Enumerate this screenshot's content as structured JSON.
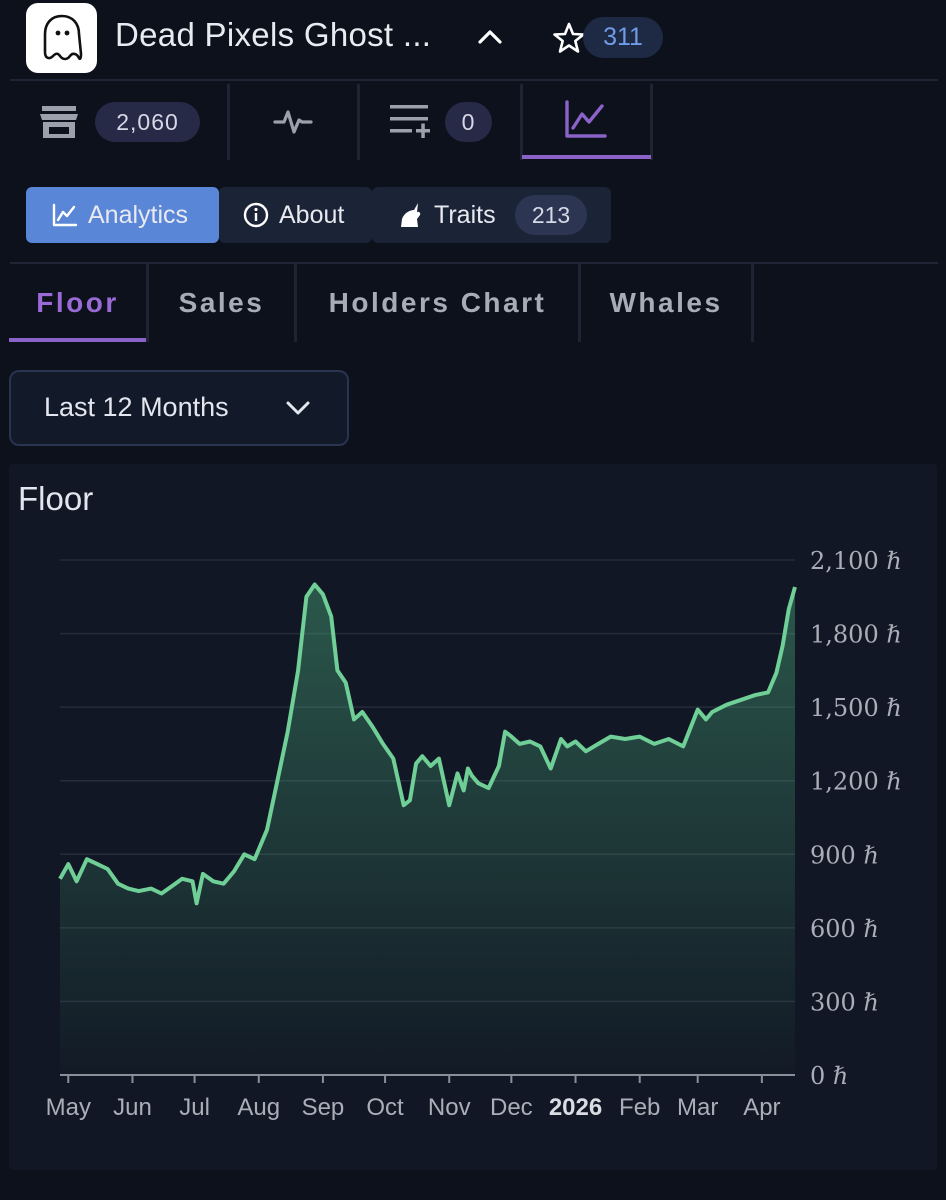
{
  "header": {
    "title": "Dead Pixels Ghost ...",
    "star_count": "311",
    "icons": {
      "logo": "ghost-icon",
      "collapse": "chevron-up-icon",
      "star": "star-icon"
    }
  },
  "icon_tabs": [
    {
      "icon": "storefront-icon",
      "count": "2,060"
    },
    {
      "icon": "activity-icon"
    },
    {
      "icon": "playlist-add-icon",
      "count": "0"
    },
    {
      "icon": "chart-line-icon",
      "active": true
    }
  ],
  "sections": {
    "analytics_label": "Analytics",
    "about_label": "About",
    "traits_label": "Traits",
    "traits_count": "213",
    "active": "Analytics"
  },
  "subtabs": {
    "floor": "Floor",
    "sales": "Sales",
    "holders": "Holders Chart",
    "whales": "Whales",
    "active": "Floor"
  },
  "range": {
    "selected": "Last 12 Months"
  },
  "colors": {
    "accent_purple": "#8a62c8",
    "accent_blue": "#5a86d8",
    "line_green": "#6fcf97",
    "background": "#0c111c"
  },
  "chart_data": {
    "type": "area",
    "title": "Floor",
    "unit": "ℏ",
    "y_axis_position": "right",
    "ylim": [
      0,
      2100
    ],
    "y_ticks": [
      "2,100 ℏ",
      "1,800 ℏ",
      "1,500 ℏ",
      "1,200 ℏ",
      "900 ℏ",
      "600 ℏ",
      "300 ℏ",
      "0 ℏ"
    ],
    "y_tick_values": [
      2100,
      1800,
      1500,
      1200,
      900,
      600,
      300,
      0
    ],
    "x_ticks": [
      "May",
      "Jun",
      "Jul",
      "Aug",
      "Sep",
      "Oct",
      "Nov",
      "Dec",
      "2026",
      "Feb",
      "Mar",
      "Apr"
    ],
    "x_ticks_bold": [
      "2026"
    ],
    "grid": true,
    "series": [
      {
        "x": [
          "2025-04-27",
          "2025-05-01",
          "2025-05-05",
          "2025-05-10",
          "2025-05-15",
          "2025-05-20",
          "2025-05-25",
          "2025-05-30",
          "2025-06-04",
          "2025-06-10",
          "2025-06-15",
          "2025-06-20",
          "2025-06-25",
          "2025-06-30",
          "2025-07-02",
          "2025-07-05",
          "2025-07-10",
          "2025-07-15",
          "2025-07-20",
          "2025-07-25",
          "2025-07-30",
          "2025-08-05",
          "2025-08-10",
          "2025-08-15",
          "2025-08-20",
          "2025-08-24",
          "2025-08-28",
          "2025-09-01",
          "2025-09-05",
          "2025-09-08",
          "2025-09-12",
          "2025-09-16",
          "2025-09-20",
          "2025-09-25",
          "2025-09-30",
          "2025-10-05",
          "2025-10-10",
          "2025-10-13",
          "2025-10-16",
          "2025-10-19",
          "2025-10-23",
          "2025-10-27",
          "2025-11-01",
          "2025-11-05",
          "2025-11-08",
          "2025-11-10",
          "2025-11-12",
          "2025-11-15",
          "2025-11-20",
          "2025-11-25",
          "2025-11-28",
          "2025-12-01",
          "2025-12-05",
          "2025-12-10",
          "2025-12-15",
          "2025-12-20",
          "2025-12-25",
          "2025-12-28",
          "2026-01-01",
          "2026-01-06",
          "2026-01-12",
          "2026-01-18",
          "2026-01-25",
          "2026-02-01",
          "2026-02-08",
          "2026-02-15",
          "2026-02-22",
          "2026-03-01",
          "2026-03-05",
          "2026-03-08",
          "2026-03-15",
          "2026-03-22",
          "2026-03-29",
          "2026-04-04",
          "2026-04-08",
          "2026-04-11",
          "2026-04-14",
          "2026-04-17"
        ],
        "values": [
          800,
          860,
          790,
          880,
          860,
          840,
          780,
          760,
          750,
          760,
          740,
          770,
          800,
          790,
          700,
          820,
          790,
          780,
          830,
          900,
          880,
          1000,
          1200,
          1400,
          1650,
          1950,
          2000,
          1960,
          1870,
          1650,
          1600,
          1450,
          1480,
          1420,
          1350,
          1290,
          1100,
          1120,
          1270,
          1300,
          1260,
          1290,
          1100,
          1230,
          1160,
          1250,
          1220,
          1190,
          1170,
          1260,
          1400,
          1380,
          1350,
          1360,
          1340,
          1250,
          1370,
          1340,
          1360,
          1320,
          1350,
          1380,
          1370,
          1380,
          1350,
          1370,
          1340,
          1490,
          1450,
          1480,
          1510,
          1530,
          1550,
          1560,
          1640,
          1750,
          1900,
          1990
        ]
      }
    ]
  }
}
